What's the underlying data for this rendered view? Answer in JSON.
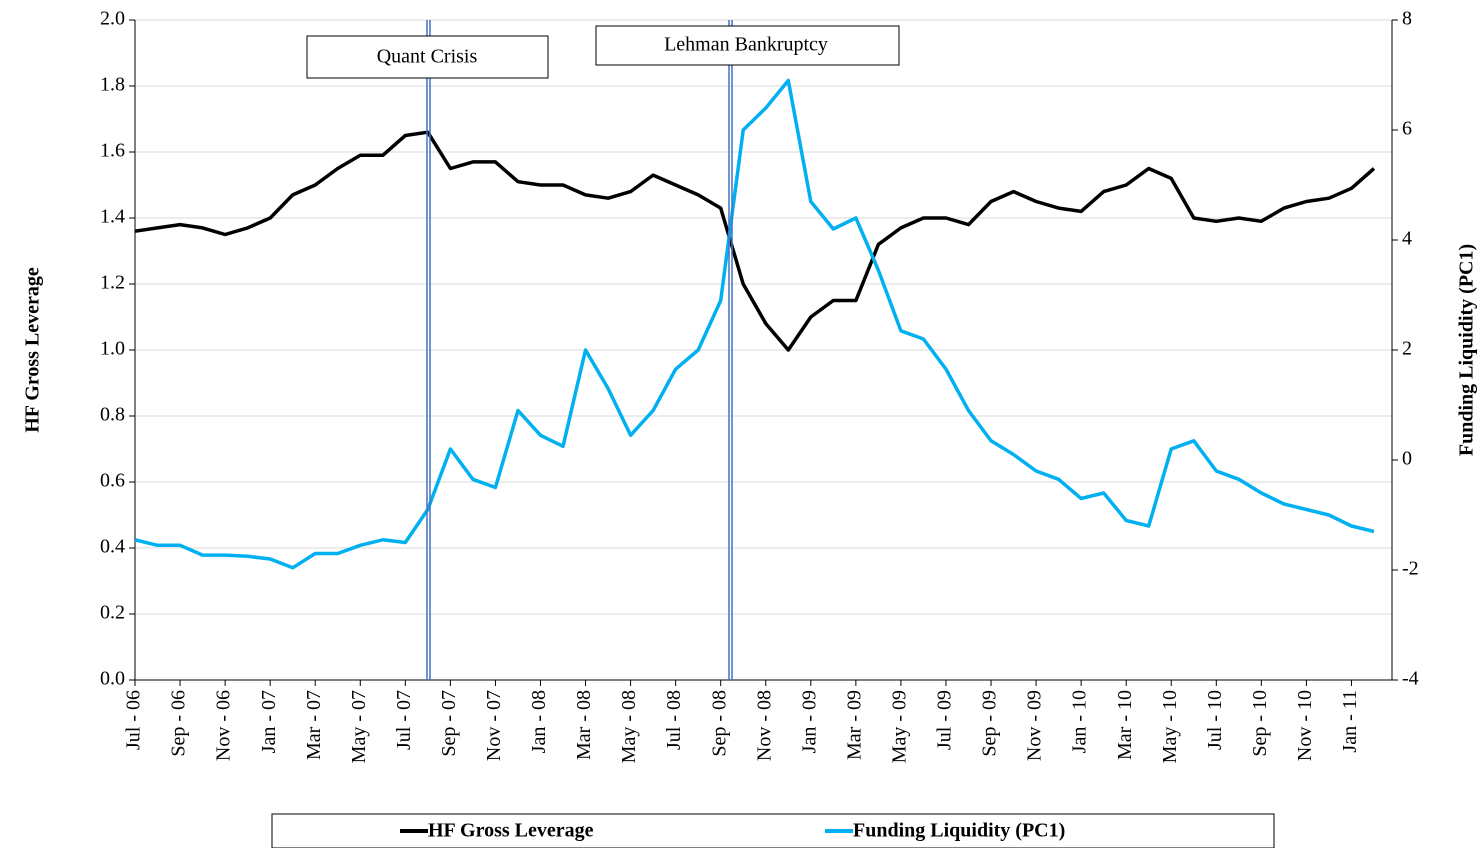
{
  "chart_data": {
    "type": "line",
    "y_label": "HF Gross Leverage",
    "y2_label": "Funding Liquidity (PC1)",
    "annotations": [
      "Quant Crisis",
      "Lehman Bankruptcy"
    ],
    "categories": [
      "Jul - 06",
      null,
      "Sep - 06",
      null,
      "Nov - 06",
      null,
      "Jan - 07",
      null,
      "Mar - 07",
      null,
      "May - 07",
      null,
      "Jul - 07",
      null,
      "Sep - 07",
      null,
      "Nov - 07",
      null,
      "Jan - 08",
      null,
      "Mar - 08",
      null,
      "May - 08",
      null,
      "Jul - 08",
      null,
      "Sep - 08",
      null,
      "Nov - 08",
      null,
      "Jan - 09",
      null,
      "Mar - 09",
      null,
      "May - 09",
      null,
      "Jul - 09",
      null,
      "Sep - 09",
      null,
      "Nov - 09",
      null,
      "Jan - 10",
      null,
      "Mar - 10",
      null,
      "May - 10",
      null,
      "Jul - 10",
      null,
      "Sep - 10",
      null,
      "Nov - 10",
      null,
      "Jan - 11",
      null
    ],
    "series": [
      {
        "name": "HF Gross Leverage",
        "color": "#000000",
        "axis": "y",
        "values": [
          1.36,
          1.37,
          1.38,
          1.37,
          1.35,
          1.37,
          1.4,
          1.47,
          1.5,
          1.55,
          1.59,
          1.59,
          1.65,
          1.66,
          1.55,
          1.57,
          1.57,
          1.51,
          1.5,
          1.5,
          1.47,
          1.46,
          1.48,
          1.53,
          1.5,
          1.47,
          1.43,
          1.2,
          1.08,
          1.0,
          1.1,
          1.15,
          1.15,
          1.32,
          1.37,
          1.4,
          1.4,
          1.38,
          1.45,
          1.48,
          1.45,
          1.43,
          1.42,
          1.48,
          1.5,
          1.55,
          1.52,
          1.4,
          1.39,
          1.4,
          1.39,
          1.43,
          1.45,
          1.46,
          1.49,
          1.55
        ]
      },
      {
        "name": "Funding Liquidity (PC1)",
        "color": "#00b0f0",
        "axis": "y2",
        "values": [
          -1.45,
          -1.55,
          -1.55,
          -1.73,
          -1.73,
          -1.75,
          -1.8,
          -1.96,
          -1.7,
          -1.7,
          -1.55,
          -1.45,
          -1.5,
          -0.9,
          0.2,
          -0.35,
          -0.5,
          0.9,
          0.45,
          0.25,
          2.0,
          1.3,
          0.45,
          0.9,
          1.65,
          2.0,
          2.9,
          6.0,
          6.4,
          6.9,
          4.7,
          4.2,
          4.4,
          3.45,
          2.35,
          2.2,
          1.65,
          0.9,
          0.35,
          0.1,
          -0.2,
          -0.35,
          -0.7,
          -0.6,
          -1.1,
          -1.2,
          0.2,
          0.35,
          -0.2,
          -0.35,
          -0.6,
          -0.8,
          -0.9,
          -1.0,
          -1.2,
          -1.3
        ]
      }
    ],
    "ylim": [
      0,
      2
    ],
    "yticks": [
      {
        "value": 0,
        "label": "0.0"
      },
      0.2,
      0.4,
      0.6,
      0.8,
      {
        "value": 1,
        "label": "1.0"
      },
      1.2,
      1.4,
      1.6,
      1.8,
      {
        "value": 2,
        "label": "2.0"
      }
    ],
    "y2lim": [
      -4,
      8
    ],
    "y2ticks": [
      -4,
      -2,
      0,
      2,
      4,
      6,
      8
    ],
    "grid": true,
    "legend": "bottom"
  }
}
